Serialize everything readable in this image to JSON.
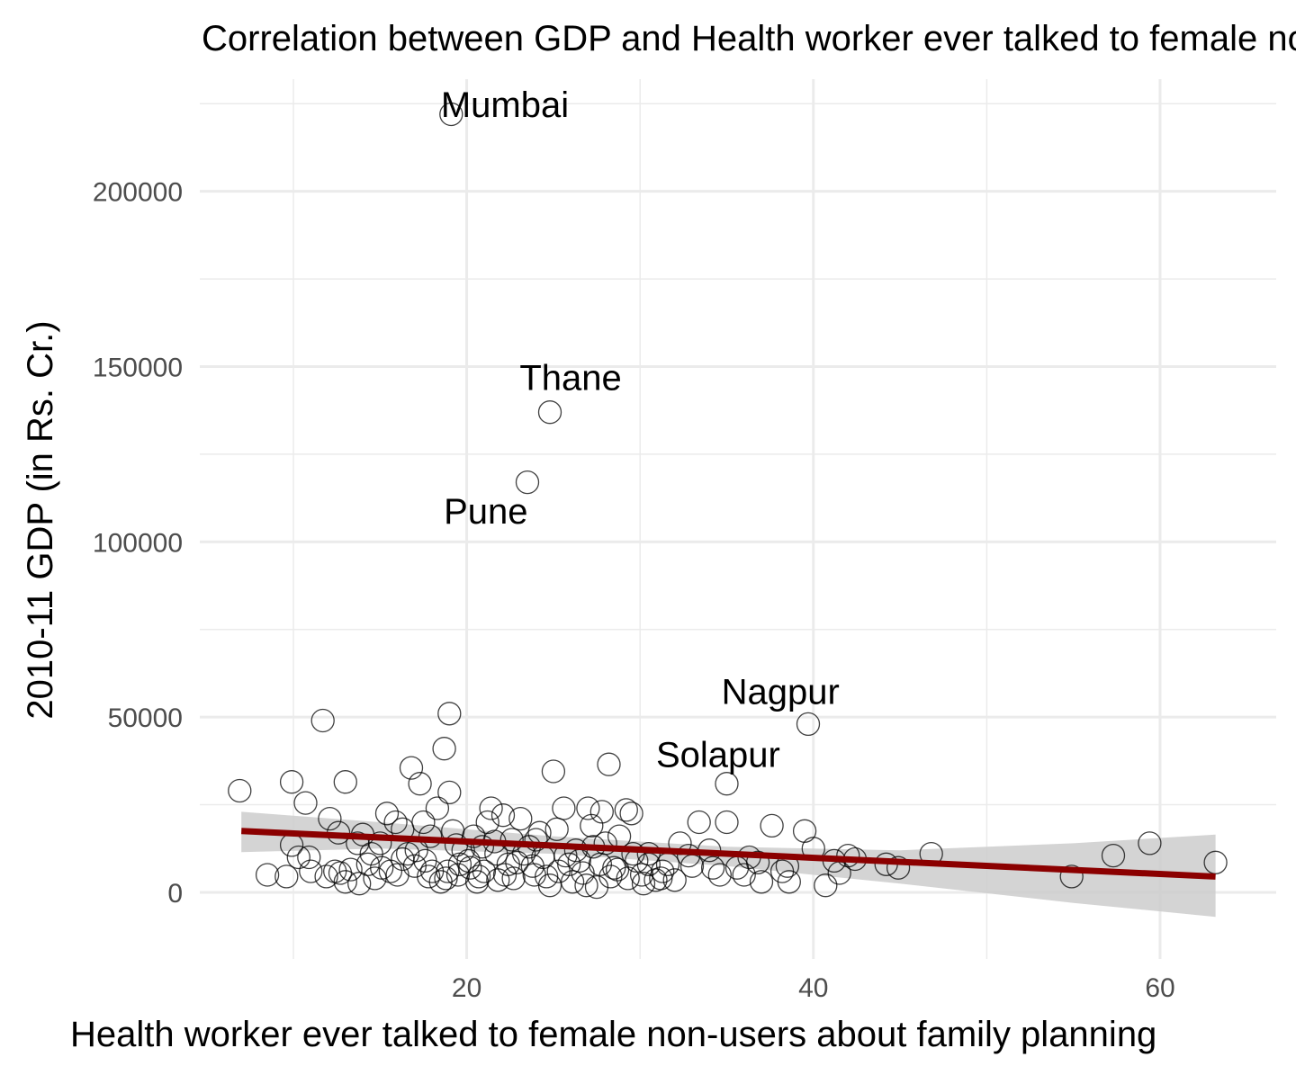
{
  "chart_data": {
    "type": "scatter",
    "title": "Correlation between GDP and Health worker ever talked to female non-users about family planning",
    "xlabel": "Health worker ever talked to female non-users about family planning",
    "ylabel": "2010-11 GDP (in Rs. Cr.)",
    "xlim": [
      4.6,
      66.7
    ],
    "ylim": [
      -19000,
      232000
    ],
    "x_ticks": [
      20,
      40,
      60
    ],
    "x_tick_labels": [
      "20",
      "40",
      "60"
    ],
    "x_minor_ticks": [
      10,
      30,
      50
    ],
    "y_ticks": [
      0,
      50000,
      100000,
      150000,
      200000
    ],
    "y_tick_labels": [
      "0",
      "50000",
      "100000",
      "150000",
      "200000"
    ],
    "y_minor_ticks": [
      25000,
      75000,
      125000,
      175000,
      225000
    ],
    "grid": true,
    "colors": {
      "points": "#000000",
      "trend_line": "#8b0000",
      "confidence_band": "#cccccc",
      "grid": "#ebebeb"
    },
    "trend_line": {
      "x": [
        7.0,
        63.2
      ],
      "y": [
        17500,
        4500
      ]
    },
    "confidence_band": {
      "x": [
        7.0,
        15.0,
        25.0,
        35.0,
        45.0,
        55.0,
        63.2
      ],
      "lower": [
        11500,
        12500,
        11000,
        7500,
        2500,
        -3000,
        -7000
      ],
      "upper": [
        23000,
        20000,
        16000,
        13000,
        12000,
        14000,
        16500
      ]
    },
    "annotations": [
      {
        "label": "Mumbai",
        "x": 22.2,
        "y": 224000
      },
      {
        "label": "Thane",
        "x": 26.0,
        "y": 146000
      },
      {
        "label": "Pune",
        "x": 21.1,
        "y": 108000
      },
      {
        "label": "Nagpur",
        "x": 38.1,
        "y": 56500
      },
      {
        "label": "Solapur",
        "x": 34.5,
        "y": 38500
      }
    ],
    "points": [
      [
        19.1,
        222000
      ],
      [
        24.8,
        137000
      ],
      [
        23.5,
        117000
      ],
      [
        39.7,
        48000
      ],
      [
        35.0,
        31000
      ],
      [
        6.9,
        29000
      ],
      [
        9.9,
        31500
      ],
      [
        10.7,
        25500
      ],
      [
        11.7,
        49000
      ],
      [
        12.1,
        21000
      ],
      [
        12.6,
        17000
      ],
      [
        12.4,
        6000
      ],
      [
        11.9,
        4500
      ],
      [
        9.9,
        13500
      ],
      [
        10.9,
        10000
      ],
      [
        13.0,
        31500
      ],
      [
        13.3,
        6500
      ],
      [
        13.7,
        14000
      ],
      [
        14.0,
        16500
      ],
      [
        14.3,
        8000
      ],
      [
        14.7,
        4000
      ],
      [
        15.1,
        7000
      ],
      [
        15.6,
        6000
      ],
      [
        15.4,
        22500
      ],
      [
        15.9,
        20000
      ],
      [
        16.3,
        18000
      ],
      [
        16.6,
        11000
      ],
      [
        17.1,
        12000
      ],
      [
        16.8,
        35500
      ],
      [
        17.3,
        31000
      ],
      [
        17.5,
        20000
      ],
      [
        17.9,
        16000
      ],
      [
        18.3,
        24000
      ],
      [
        18.7,
        41000
      ],
      [
        19.0,
        51000
      ],
      [
        19.0,
        28500
      ],
      [
        19.2,
        17500
      ],
      [
        19.6,
        8000
      ],
      [
        18.8,
        4000
      ],
      [
        19.5,
        5000
      ],
      [
        20.1,
        9000
      ],
      [
        20.4,
        16000
      ],
      [
        20.6,
        3000
      ],
      [
        20.9,
        13000
      ],
      [
        21.2,
        20000
      ],
      [
        21.4,
        24000
      ],
      [
        21.7,
        11000
      ],
      [
        22.1,
        22000
      ],
      [
        22.2,
        5000
      ],
      [
        22.6,
        15000
      ],
      [
        22.9,
        8500
      ],
      [
        23.1,
        21000
      ],
      [
        23.6,
        13000
      ],
      [
        23.9,
        5000
      ],
      [
        24.2,
        17000
      ],
      [
        24.4,
        10000
      ],
      [
        24.8,
        2000
      ],
      [
        25.0,
        34500
      ],
      [
        25.2,
        18000
      ],
      [
        25.6,
        24000
      ],
      [
        25.9,
        8000
      ],
      [
        26.1,
        3000
      ],
      [
        26.3,
        12000
      ],
      [
        26.7,
        5500
      ],
      [
        27.0,
        24000
      ],
      [
        27.2,
        19000
      ],
      [
        27.5,
        1500
      ],
      [
        27.8,
        23000
      ],
      [
        28.0,
        14000
      ],
      [
        28.2,
        36500
      ],
      [
        28.5,
        7000
      ],
      [
        28.8,
        16000
      ],
      [
        29.2,
        23500
      ],
      [
        29.5,
        22500
      ],
      [
        29.8,
        9000
      ],
      [
        30.1,
        5000
      ],
      [
        30.5,
        11000
      ],
      [
        30.9,
        3500
      ],
      [
        31.3,
        6000
      ],
      [
        31.6,
        8000
      ],
      [
        32.3,
        14000
      ],
      [
        32.8,
        10500
      ],
      [
        33.4,
        20000
      ],
      [
        34.0,
        12000
      ],
      [
        34.6,
        5000
      ],
      [
        35.0,
        20000
      ],
      [
        35.6,
        7000
      ],
      [
        36.3,
        10000
      ],
      [
        37.0,
        3000
      ],
      [
        37.6,
        19000
      ],
      [
        38.2,
        6000
      ],
      [
        38.6,
        3000
      ],
      [
        39.5,
        17500
      ],
      [
        40.0,
        12500
      ],
      [
        40.7,
        2000
      ],
      [
        41.2,
        9000
      ],
      [
        42.0,
        10500
      ],
      [
        42.4,
        9500
      ],
      [
        44.2,
        8000
      ],
      [
        44.9,
        7000
      ],
      [
        46.8,
        11000
      ],
      [
        54.9,
        4500
      ],
      [
        57.3,
        10500
      ],
      [
        59.4,
        14000
      ],
      [
        63.2,
        8500
      ],
      [
        8.5,
        5000
      ],
      [
        9.6,
        4500
      ],
      [
        10.3,
        10000
      ],
      [
        11.0,
        6000
      ],
      [
        13.0,
        3000
      ],
      [
        13.8,
        2500
      ],
      [
        16.0,
        5000
      ],
      [
        17.0,
        7500
      ],
      [
        18.0,
        6000
      ],
      [
        18.5,
        3000
      ],
      [
        19.8,
        12000
      ],
      [
        21.0,
        6000
      ],
      [
        21.8,
        3500
      ],
      [
        22.7,
        4000
      ],
      [
        23.3,
        11000
      ],
      [
        24.0,
        15000
      ],
      [
        25.3,
        6000
      ],
      [
        26.5,
        9000
      ],
      [
        27.3,
        13000
      ],
      [
        28.7,
        6500
      ],
      [
        29.3,
        4000
      ],
      [
        30.5,
        8000
      ],
      [
        31.2,
        4000
      ],
      [
        33.0,
        7500
      ],
      [
        36.0,
        5000
      ],
      [
        38.5,
        7500
      ],
      [
        41.5,
        5500
      ],
      [
        15.0,
        14000
      ],
      [
        16.3,
        9500
      ],
      [
        17.6,
        9000
      ],
      [
        18.9,
        6000
      ],
      [
        20.7,
        4500
      ],
      [
        22.4,
        8000
      ],
      [
        24.6,
        4500
      ],
      [
        26.9,
        2000
      ],
      [
        28.3,
        4500
      ],
      [
        30.2,
        2500
      ],
      [
        20.2,
        7000
      ],
      [
        12.7,
        5500
      ],
      [
        14.5,
        11000
      ],
      [
        19.4,
        13500
      ],
      [
        21.6,
        14500
      ],
      [
        23.8,
        7500
      ],
      [
        25.7,
        10500
      ],
      [
        27.7,
        8000
      ],
      [
        29.6,
        11000
      ],
      [
        32.0,
        3500
      ],
      [
        34.2,
        7000
      ],
      [
        36.8,
        8500
      ],
      [
        17.8,
        4500
      ]
    ]
  }
}
